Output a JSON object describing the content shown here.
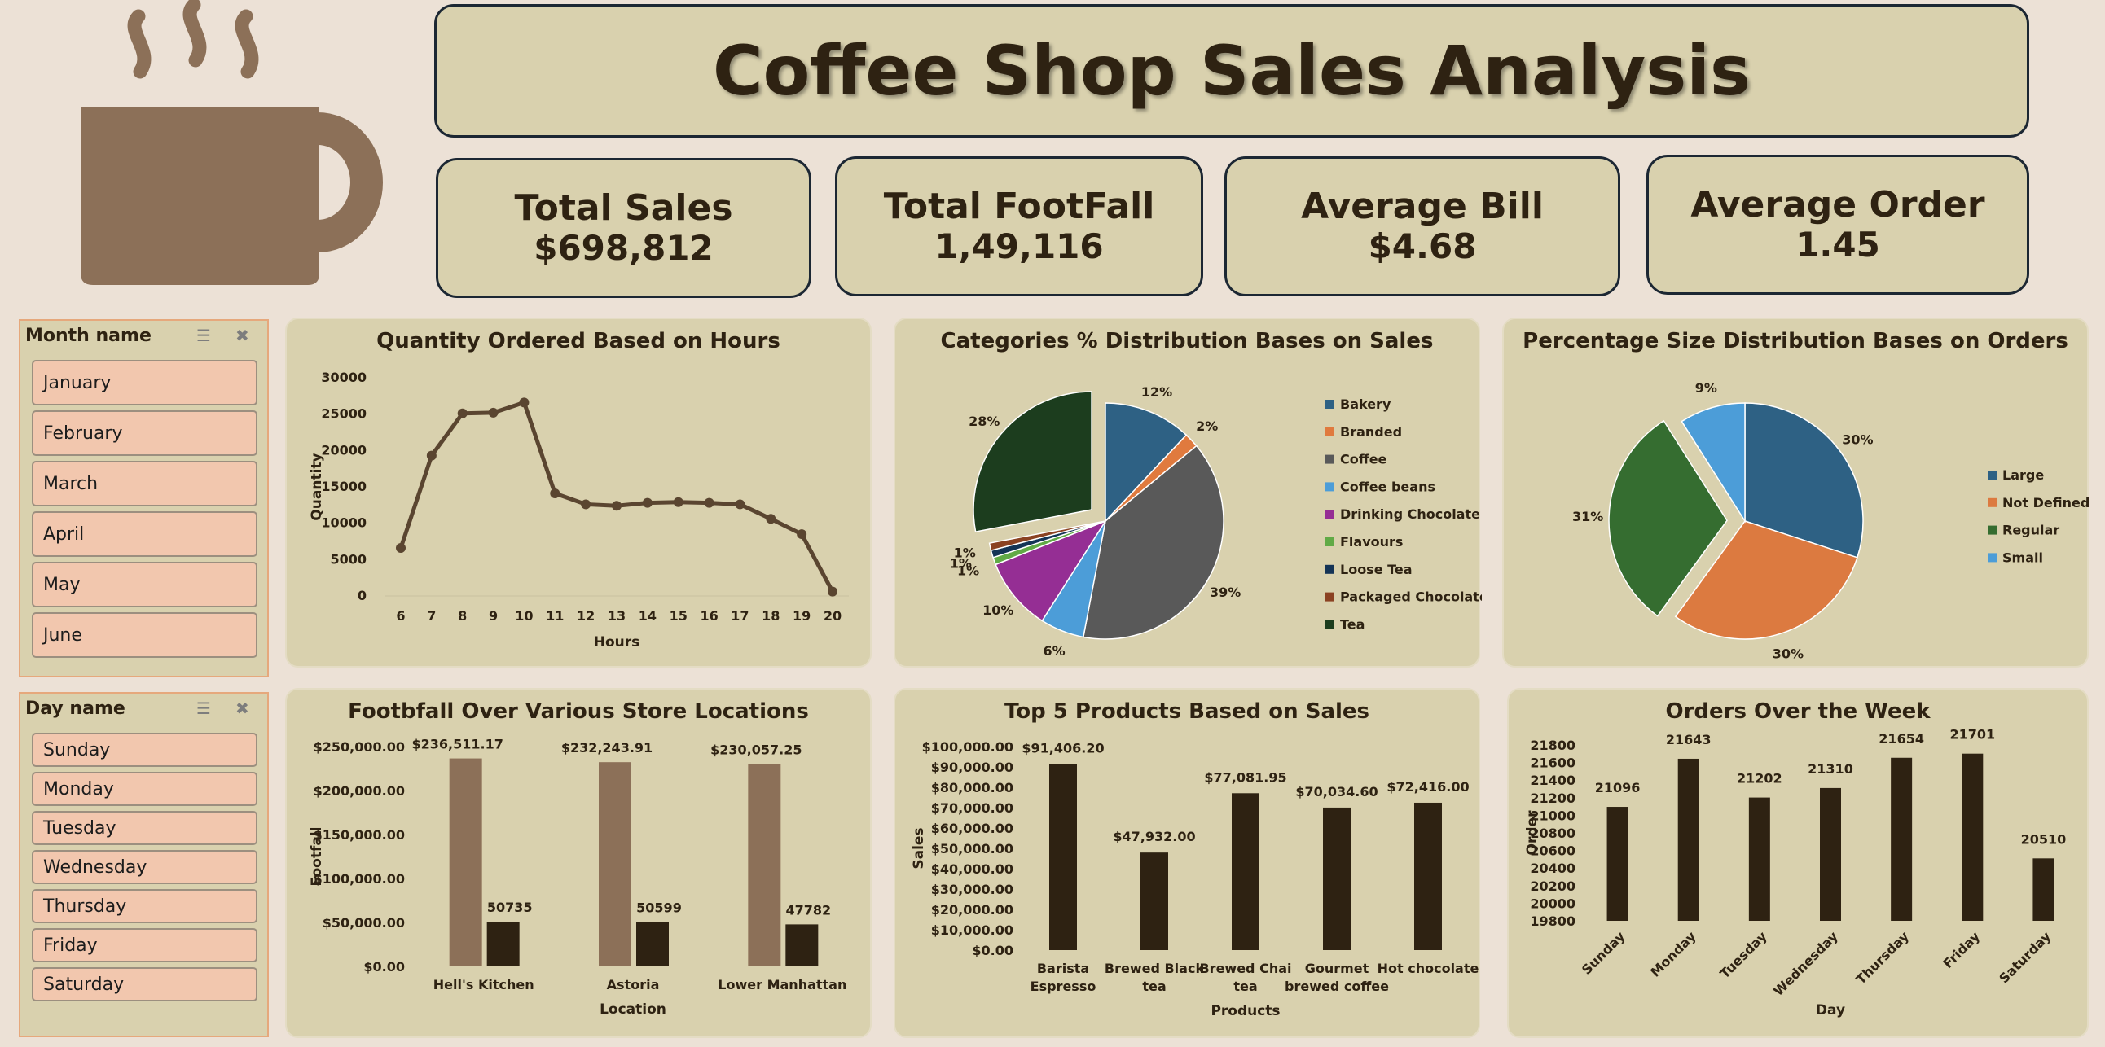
{
  "title": "Coffee Shop Sales Analysis",
  "kpis": [
    {
      "label": "Total Sales",
      "value": "$698,812"
    },
    {
      "label": "Total FootFall",
      "value": "1,49,116"
    },
    {
      "label": "Average Bill",
      "value": "$4.68"
    },
    {
      "label": "Average Order",
      "value": "1.45"
    }
  ],
  "slicers": {
    "month": {
      "header": "Month name",
      "items": [
        "January",
        "February",
        "March",
        "April",
        "May",
        "June"
      ]
    },
    "day": {
      "header": "Day name",
      "items": [
        "Sunday",
        "Monday",
        "Tuesday",
        "Wednesday",
        "Thursday",
        "Friday",
        "Saturday"
      ]
    }
  },
  "icons": [
    "coffee-cup-icon",
    "multi-select-icon",
    "clear-filter-icon"
  ],
  "colors": {
    "background": "#ece1d6",
    "panel": "#d9d1ae",
    "dark_brown": "#2e2212",
    "mid_brown": "#8c7058",
    "slicer_item": "#f2c7ae"
  },
  "chart_data": [
    {
      "id": "hours",
      "type": "line",
      "title": "Quantity Ordered Based on Hours",
      "xlabel": "Hours",
      "ylabel": "Quantity",
      "x": [
        6,
        7,
        8,
        9,
        10,
        11,
        12,
        13,
        14,
        15,
        16,
        17,
        18,
        19,
        20
      ],
      "values": [
        6600,
        19300,
        25100,
        25200,
        26600,
        14100,
        12600,
        12400,
        12800,
        12900,
        12800,
        12600,
        10600,
        8500,
        600
      ],
      "ylim": [
        0,
        30000
      ],
      "yticks": [
        "0",
        "5000",
        "10000",
        "15000",
        "20000",
        "25000",
        "30000"
      ]
    },
    {
      "id": "categories",
      "type": "pie",
      "title": "Categories % Distribution Bases on Sales",
      "legend_position": "right",
      "slices": [
        {
          "name": "Bakery",
          "value": 12,
          "label": "12%",
          "color": "#2e6184"
        },
        {
          "name": "Branded",
          "value": 2,
          "label": "2%",
          "color": "#e07a3e"
        },
        {
          "name": "Coffee",
          "value": 39,
          "label": "39%",
          "color": "#595959"
        },
        {
          "name": "Coffee beans",
          "value": 6,
          "label": "6%",
          "color": "#4c9dd8"
        },
        {
          "name": "Drinking Chocolate",
          "value": 10,
          "label": "10%",
          "color": "#952e94"
        },
        {
          "name": "Flavours",
          "value": 1,
          "label": "1%",
          "color": "#61aa46"
        },
        {
          "name": "Loose Tea",
          "value": 1,
          "label": "1%",
          "color": "#143456"
        },
        {
          "name": "Packaged Chocolate",
          "value": 1,
          "label": "1%",
          "color": "#8b4222"
        },
        {
          "name": "Tea",
          "value": 28,
          "label": "28%",
          "color": "#1c3d1e"
        }
      ]
    },
    {
      "id": "sizes",
      "type": "pie",
      "title": "Percentage Size Distribution Bases on Orders",
      "legend_position": "right",
      "slices": [
        {
          "name": "Large",
          "value": 30,
          "label": "30%",
          "color": "#2e6184"
        },
        {
          "name": "Not Defined",
          "value": 30,
          "label": "30%",
          "color": "#dc7a40"
        },
        {
          "name": "Regular",
          "value": 31,
          "label": "31%",
          "color": "#356d30"
        },
        {
          "name": "Small",
          "value": 9,
          "label": "9%",
          "color": "#4c9dd8"
        }
      ]
    },
    {
      "id": "locations",
      "type": "bar",
      "title": "Footbfall Over Various Store Locations",
      "xlabel": "Location",
      "ylabel": "Footfall",
      "categories": [
        "Hell's Kitchen",
        "Astoria",
        "Lower Manhattan"
      ],
      "series": [
        {
          "values": [
            236511.17,
            232243.91,
            230057.25
          ],
          "labels": [
            "$236,511.17",
            "$232,243.91",
            "$230,057.25"
          ],
          "color": "#8c7058"
        },
        {
          "values": [
            50735,
            50599,
            47782
          ],
          "labels": [
            "50735",
            "50599",
            "47782"
          ],
          "color": "#2e2212"
        }
      ],
      "ylim": [
        0,
        250000
      ],
      "yticks": [
        "$0.00",
        "$50,000.00",
        "$100,000.00",
        "$150,000.00",
        "$200,000.00",
        "$250,000.00"
      ]
    },
    {
      "id": "products",
      "type": "bar",
      "title": "Top 5 Products Based on Sales",
      "xlabel": "Products",
      "ylabel": "Sales",
      "categories": [
        [
          "Barista",
          "Espresso"
        ],
        [
          "Brewed Black",
          "tea"
        ],
        [
          "Brewed Chai",
          "tea"
        ],
        [
          "Gourmet",
          "brewed coffee"
        ],
        [
          "Hot chocolate"
        ]
      ],
      "values": [
        91406.2,
        47932.0,
        77081.95,
        70034.6,
        72416.0
      ],
      "labels": [
        "$91,406.20",
        "$47,932.00",
        "$77,081.95",
        "$70,034.60",
        "$72,416.00"
      ],
      "ylim": [
        0,
        100000
      ],
      "yticks": [
        "$0.00",
        "$10,000.00",
        "$20,000.00",
        "$30,000.00",
        "$40,000.00",
        "$50,000.00",
        "$60,000.00",
        "$70,000.00",
        "$80,000.00",
        "$90,000.00",
        "$100,000.00"
      ]
    },
    {
      "id": "week",
      "type": "bar",
      "title": "Orders Over the Week",
      "xlabel": "Day",
      "ylabel": "Order",
      "categories": [
        "Sunday",
        "Monday",
        "Tuesday",
        "Wednesday",
        "Thursday",
        "Friday",
        "Saturday"
      ],
      "values": [
        21096,
        21643,
        21202,
        21310,
        21654,
        21701,
        20510
      ],
      "labels": [
        "21096",
        "21643",
        "21202",
        "21310",
        "21654",
        "21701",
        "20510"
      ],
      "ylim": [
        19800,
        21800
      ],
      "yticks": [
        "19800",
        "20000",
        "20200",
        "20400",
        "20600",
        "20800",
        "21000",
        "21200",
        "21400",
        "21600",
        "21800"
      ]
    }
  ]
}
